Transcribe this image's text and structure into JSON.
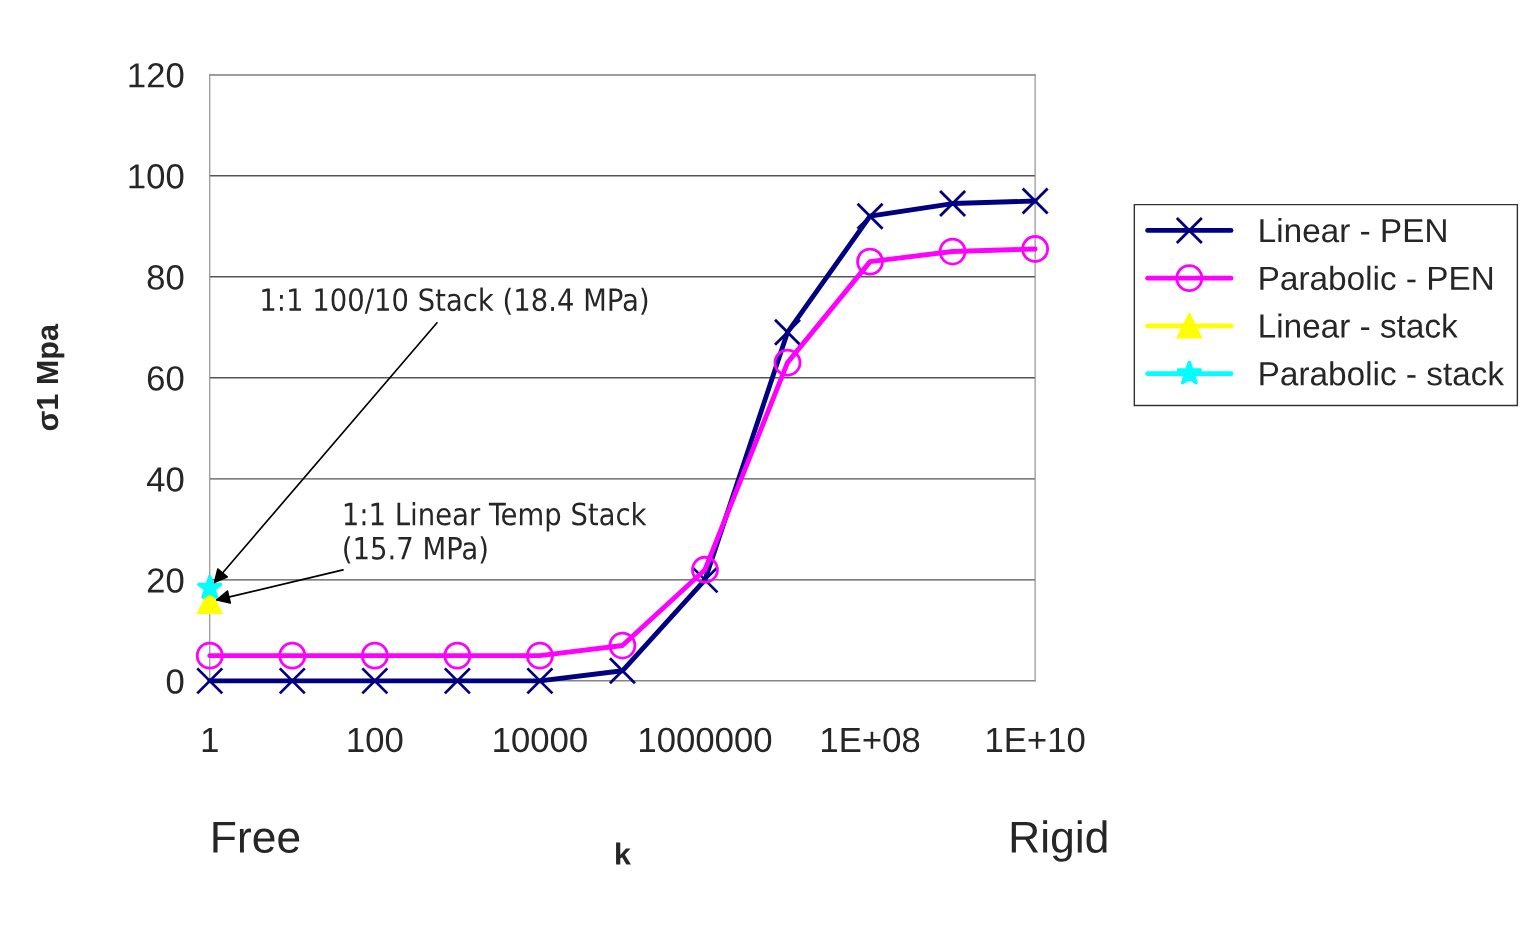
{
  "chart_data": {
    "type": "line",
    "xlabel": "k",
    "ylabel": "σ1 Mpa",
    "x": [
      1,
      10,
      100,
      1000,
      10000,
      100000,
      1000000,
      10000000,
      100000000,
      1000000000,
      10000000000
    ],
    "series": [
      {
        "name": "Linear - PEN",
        "color": "#000080",
        "marker": "cross",
        "values": [
          0,
          0,
          0,
          0,
          0,
          2,
          20,
          69,
          92,
          94.5,
          95
        ]
      },
      {
        "name": "Parabolic - PEN",
        "color": "#ff00ff",
        "marker": "circle",
        "values": [
          5,
          5,
          5,
          5,
          5,
          7,
          22,
          63,
          83,
          85,
          85.5
        ]
      },
      {
        "name": "Linear - stack",
        "color": "#ffff00",
        "marker": "triangle",
        "x": [
          1
        ],
        "values": [
          15.7
        ]
      },
      {
        "name": "Parabolic - stack",
        "color": "#00ffff",
        "marker": "star",
        "x": [
          1
        ],
        "values": [
          18.4
        ]
      }
    ],
    "log": "x",
    "xlim": [
      1,
      10000000000
    ],
    "ylim": [
      0,
      120
    ],
    "xticks": [
      1,
      100,
      10000,
      1000000,
      {
        "value": 100000000,
        "label": "1E+08"
      },
      {
        "value": 10000000000,
        "label": "1E+10"
      }
    ],
    "yticks": [
      0,
      20,
      40,
      60,
      80,
      100,
      120
    ],
    "grid": "y",
    "legend": "right",
    "annotations": [
      {
        "text": "1:1 100/10 Stack (18.4 MPa)",
        "x": 1,
        "y": 18.4
      },
      {
        "text": "1:1 Linear Temp Stack\n(15.7 MPa)",
        "x": 1,
        "y": 15.7
      },
      "Free",
      "Rigid"
    ]
  }
}
